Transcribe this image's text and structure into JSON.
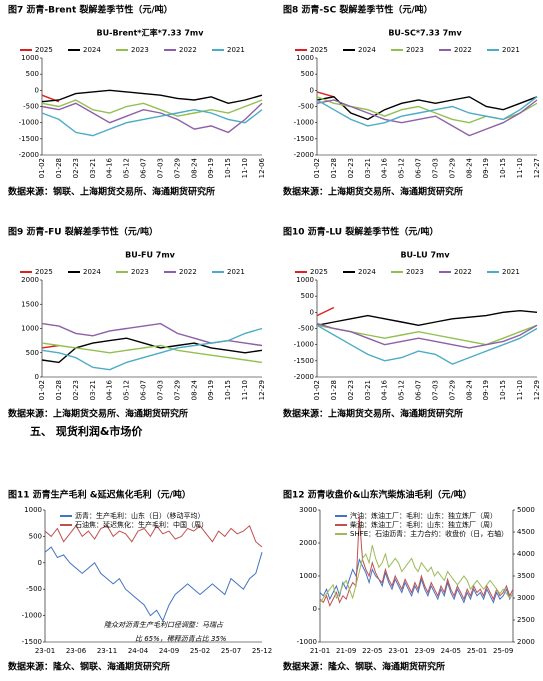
{
  "document": {
    "section": "五、 现货利润&市场价"
  },
  "chart_data": [
    {
      "type": "line",
      "caption": "图7  沥青-Brent 裂解差季节性（元/吨）",
      "title": "BU-Brent*汇率*7.33 7mv",
      "source": "数据来源：钢联、上海期货交易所、海通期货研究所",
      "categories": [
        "01-02",
        "01-28",
        "02-23",
        "03-21",
        "04-16",
        "05-12",
        "06-07",
        "07-03",
        "07-29",
        "08-24",
        "09-19",
        "10-15",
        "11-10",
        "12-06"
      ],
      "ylim": [
        -2000,
        1000
      ],
      "yticks": [
        -2000,
        -1500,
        -1000,
        -500,
        0,
        500,
        1000
      ],
      "rotate_x": true,
      "series": [
        {
          "name": "2025",
          "color": "#e02020",
          "values": [
            -150,
            -350,
            null,
            null,
            null,
            null,
            null,
            null,
            null,
            null,
            null,
            null,
            null,
            null
          ]
        },
        {
          "name": "2024",
          "color": "#000000",
          "values": [
            -350,
            -300,
            -100,
            -50,
            0,
            -50,
            -100,
            -150,
            -250,
            -300,
            -200,
            -400,
            -300,
            -150
          ]
        },
        {
          "name": "2023",
          "color": "#92c050",
          "values": [
            -400,
            -500,
            -300,
            -600,
            -700,
            -500,
            -400,
            -600,
            -800,
            -700,
            -600,
            -700,
            -500,
            -300
          ]
        },
        {
          "name": "2022",
          "color": "#8e5fa8",
          "values": [
            -500,
            -600,
            -400,
            -700,
            -1000,
            -800,
            -600,
            -700,
            -900,
            -1200,
            -1100,
            -1300,
            -900,
            -400
          ]
        },
        {
          "name": "2021",
          "color": "#4bacc6",
          "values": [
            -700,
            -900,
            -1300,
            -1400,
            -1200,
            -1000,
            -900,
            -800,
            -700,
            -600,
            -700,
            -900,
            -1000,
            -600
          ]
        }
      ]
    },
    {
      "type": "line",
      "caption": "图8  沥青-SC 裂解差季节性（元/吨）",
      "title": "BU-SC*7.33 7mv",
      "source": "数据来源：上海期货交易所、海通期货研究所",
      "categories": [
        "01-02",
        "01-28",
        "02-23",
        "03-21",
        "04-16",
        "05-12",
        "06-07",
        "07-03",
        "07-29",
        "08-24",
        "09-19",
        "10-15",
        "11-10",
        "12-27"
      ],
      "ylim": [
        -2000,
        1000
      ],
      "yticks": [
        -2000,
        -1500,
        -1000,
        -500,
        0,
        500,
        1000
      ],
      "rotate_x": true,
      "series": [
        {
          "name": "2025",
          "color": "#e02020",
          "values": [
            -50,
            -200,
            null,
            null,
            null,
            null,
            null,
            null,
            null,
            null,
            null,
            null,
            null,
            null
          ]
        },
        {
          "name": "2024",
          "color": "#000000",
          "values": [
            -300,
            -200,
            -700,
            -900,
            -600,
            -400,
            -300,
            -400,
            -300,
            -200,
            -500,
            -600,
            -400,
            -200
          ]
        },
        {
          "name": "2023",
          "color": "#92c050",
          "values": [
            -200,
            -400,
            -500,
            -600,
            -800,
            -600,
            -500,
            -700,
            -900,
            -1000,
            -800,
            -900,
            -700,
            -400
          ]
        },
        {
          "name": "2022",
          "color": "#8e5fa8",
          "values": [
            -400,
            -300,
            -500,
            -700,
            -900,
            -1000,
            -900,
            -800,
            -1100,
            -1400,
            -1200,
            -1000,
            -700,
            -300
          ]
        },
        {
          "name": "2021",
          "color": "#4bacc6",
          "values": [
            -300,
            -600,
            -900,
            -1100,
            -1000,
            -800,
            -700,
            -600,
            -500,
            -700,
            -800,
            -900,
            -600,
            -200
          ]
        }
      ]
    },
    {
      "type": "line",
      "caption": "图9  沥青-FU 裂解差季节性（元/吨）",
      "title": "BU-FU 7mv",
      "source": "数据来源：上海期货交易所、海通期货研究所",
      "categories": [
        "01-02",
        "01-28",
        "02-23",
        "03-21",
        "04-16",
        "05-12",
        "06-07",
        "07-03",
        "07-29",
        "08-24",
        "09-19",
        "10-15",
        "11-10",
        "12-29"
      ],
      "ylim": [
        0,
        2000
      ],
      "yticks": [
        0,
        500,
        1000,
        1500,
        2000
      ],
      "rotate_x": true,
      "series": [
        {
          "name": "2025",
          "color": "#e02020",
          "values": [
            600,
            650,
            null,
            null,
            null,
            null,
            null,
            null,
            null,
            null,
            null,
            null,
            null,
            null
          ]
        },
        {
          "name": "2024",
          "color": "#000000",
          "values": [
            350,
            300,
            600,
            700,
            750,
            800,
            700,
            600,
            650,
            700,
            600,
            550,
            500,
            550
          ]
        },
        {
          "name": "2023",
          "color": "#92c050",
          "values": [
            700,
            650,
            600,
            550,
            500,
            550,
            600,
            650,
            550,
            500,
            450,
            400,
            350,
            300
          ]
        },
        {
          "name": "2022",
          "color": "#8e5fa8",
          "values": [
            1100,
            1050,
            900,
            850,
            950,
            1000,
            1050,
            1100,
            900,
            800,
            700,
            750,
            700,
            650
          ]
        },
        {
          "name": "2021",
          "color": "#4bacc6",
          "values": [
            550,
            500,
            400,
            200,
            150,
            300,
            400,
            500,
            600,
            650,
            700,
            750,
            900,
            1000
          ]
        }
      ]
    },
    {
      "type": "line",
      "caption": "图10  沥青-LU 裂解差季节性（元/吨）",
      "title": "BU-LU 7mv",
      "source": "数据来源：上海期货交易所、海通期货研究所",
      "categories": [
        "01-02",
        "01-28",
        "02-23",
        "03-21",
        "04-16",
        "05-12",
        "06-07",
        "07-03",
        "07-29",
        "08-24",
        "09-19",
        "10-15",
        "11-10",
        "12-29"
      ],
      "ylim": [
        -2000,
        1000
      ],
      "yticks": [
        -2000,
        -1500,
        -1000,
        -500,
        0,
        500,
        1000
      ],
      "rotate_x": true,
      "series": [
        {
          "name": "2025",
          "color": "#e02020",
          "values": [
            -100,
            150,
            null,
            null,
            null,
            null,
            null,
            null,
            null,
            null,
            null,
            null,
            null,
            null
          ]
        },
        {
          "name": "2024",
          "color": "#000000",
          "values": [
            -400,
            -300,
            -200,
            -100,
            -200,
            -300,
            -400,
            -300,
            -200,
            -150,
            -100,
            0,
            50,
            0
          ]
        },
        {
          "name": "2023",
          "color": "#92c050",
          "values": [
            -400,
            -500,
            -600,
            -700,
            -800,
            -700,
            -600,
            -700,
            -800,
            -900,
            -1000,
            -800,
            -600,
            -400
          ]
        },
        {
          "name": "2022",
          "color": "#8e5fa8",
          "values": [
            -350,
            -500,
            -600,
            -800,
            -1000,
            -900,
            -800,
            -900,
            -1000,
            -1100,
            -1000,
            -900,
            -700,
            -400
          ]
        },
        {
          "name": "2021",
          "color": "#4bacc6",
          "values": [
            -400,
            -700,
            -1000,
            -1300,
            -1500,
            -1400,
            -1200,
            -1300,
            -1600,
            -1400,
            -1200,
            -1000,
            -800,
            -500
          ]
        }
      ]
    },
    {
      "type": "line",
      "caption": "图11  沥青生产毛利 &延迟焦化毛利（元/吨）",
      "source": "数据来源：隆众、钢联、海通期货研究所",
      "categories": [
        "23-01",
        null,
        null,
        null,
        null,
        "23-06",
        null,
        null,
        null,
        null,
        "23-11",
        null,
        null,
        null,
        null,
        "24-04",
        null,
        null,
        null,
        null,
        "24-09",
        null,
        null,
        null,
        null,
        "25-02",
        null,
        null,
        null,
        null,
        "25-07",
        null,
        null,
        null,
        null,
        "25-12"
      ],
      "ylim": [
        -1500,
        1000
      ],
      "yticks": [
        -1500,
        -1000,
        -500,
        0,
        500,
        1000
      ],
      "annotations": [
        "隆众对沥青生产毛利口径调整：马瑞占",
        "比 65%，稀释沥青占比 35%"
      ],
      "series": [
        {
          "name": "沥青：生产毛利：山东（日）（移动平均）",
          "color": "#4472c4",
          "values": [
            200,
            300,
            100,
            150,
            0,
            -100,
            -200,
            -100,
            0,
            -200,
            -300,
            -400,
            -300,
            -500,
            -600,
            -700,
            -800,
            -1000,
            -900,
            -1100,
            -800,
            -600,
            -500,
            -400,
            -500,
            -600,
            -500,
            -400,
            -500,
            -600,
            -300,
            -400,
            -500,
            -300,
            -200,
            200
          ]
        },
        {
          "name": "石油焦：延迟焦化：生产毛利：中国（周）",
          "color": "#c0504d",
          "values": [
            600,
            500,
            650,
            400,
            550,
            700,
            500,
            600,
            450,
            650,
            700,
            500,
            600,
            550,
            400,
            600,
            650,
            500,
            700,
            550,
            600,
            450,
            500,
            650,
            600,
            700,
            550,
            400,
            600,
            500,
            650,
            550,
            600,
            700,
            400,
            300
          ]
        }
      ]
    },
    {
      "type": "line",
      "caption": "图12  沥青收盘价&山东汽柴炼油毛利（元/吨）",
      "source": "数据来源：隆众、钢联、海通期货研究所",
      "categories": [
        "21-01",
        null,
        null,
        null,
        null,
        null,
        null,
        null,
        "21-09",
        null,
        null,
        null,
        null,
        null,
        null,
        null,
        "22-05",
        null,
        null,
        null,
        null,
        null,
        null,
        null,
        "23-01",
        null,
        null,
        null,
        null,
        null,
        null,
        null,
        "23-09",
        null,
        null,
        null,
        null,
        null,
        null,
        null,
        "24-05",
        null,
        null,
        null,
        null,
        null,
        null,
        null,
        "25-01",
        null,
        null,
        null,
        null,
        null,
        null,
        null,
        "25-09",
        null,
        null,
        null
      ],
      "ylim": [
        -1000,
        3000
      ],
      "yticks": [
        -1000,
        0,
        1000,
        2000,
        3000
      ],
      "y2lim": [
        2000,
        5000
      ],
      "y2ticks": [
        2000,
        2500,
        3000,
        3500,
        4000,
        4500,
        5000
      ],
      "series": [
        {
          "name": "汽油：炼油工厂：毛利：山东：独立炼厂（周）",
          "color": "#4472c4",
          "values": [
            500,
            400,
            600,
            300,
            500,
            700,
            400,
            800,
            600,
            900,
            1200,
            1000,
            1500,
            1300,
            1100,
            800,
            1200,
            1000,
            900,
            700,
            1100,
            800,
            600,
            900,
            700,
            500,
            800,
            600,
            400,
            700,
            500,
            900,
            600,
            400,
            700,
            500,
            300,
            600,
            400,
            800,
            500,
            300,
            600,
            400,
            200,
            500,
            300,
            600,
            400,
            500,
            300,
            600,
            400,
            200,
            500,
            300,
            400,
            600,
            300,
            500
          ]
        },
        {
          "name": "柴油：炼油工厂：毛利：山东：独立炼厂（周）",
          "color": "#c0504d",
          "values": [
            300,
            200,
            400,
            100,
            300,
            500,
            200,
            400,
            300,
            600,
            800,
            700,
            2800,
            1500,
            1200,
            1000,
            1400,
            1100,
            900,
            800,
            1200,
            900,
            700,
            1000,
            800,
            600,
            900,
            700,
            500,
            800,
            600,
            1000,
            700,
            500,
            800,
            600,
            400,
            700,
            500,
            900,
            600,
            400,
            700,
            500,
            300,
            600,
            400,
            700,
            500,
            600,
            400,
            700,
            500,
            300,
            600,
            400,
            500,
            700,
            400,
            600
          ]
        },
        {
          "name": "SHFE：石油沥青：主力合约：收盘价（日，右轴）",
          "color": "#9bbb59",
          "axis": "y2",
          "values": [
            2900,
            3000,
            3100,
            3200,
            3300,
            3000,
            3100,
            3300,
            3400,
            3200,
            3000,
            3300,
            3600,
            3900,
            4000,
            3800,
            4200,
            3900,
            3700,
            3800,
            4000,
            3700,
            3800,
            3900,
            3800,
            3600,
            3700,
            3800,
            3900,
            3700,
            3600,
            3800,
            3700,
            3600,
            3700,
            3500,
            3600,
            3500,
            3400,
            3600,
            3500,
            3400,
            3300,
            3400,
            3500,
            3400,
            3200,
            3300,
            3400,
            3300,
            3200,
            3300,
            3400,
            3300,
            3200,
            3100,
            3200,
            3100,
            3000,
            3100
          ]
        }
      ]
    }
  ]
}
